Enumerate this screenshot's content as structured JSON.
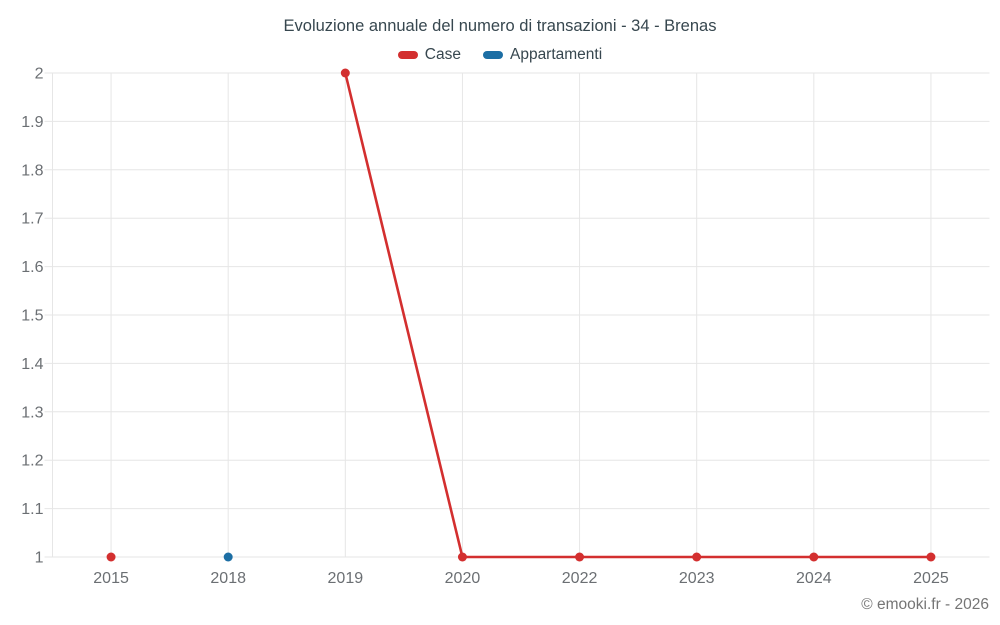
{
  "header": {
    "title": "Evoluzione annuale del numero di transazioni - 34 - Brenas"
  },
  "footer": {
    "copyright": "© emooki.fr - 2026"
  },
  "chart_data": {
    "type": "line",
    "title": "Evoluzione annuale del numero di transazioni - 34 - Brenas",
    "categories": [
      "2015",
      "2018",
      "2019",
      "2020",
      "2022",
      "2023",
      "2024",
      "2025"
    ],
    "series": [
      {
        "name": "Case",
        "color": "#d32f2f",
        "values": [
          1,
          null,
          2,
          1,
          1,
          1,
          1,
          1
        ]
      },
      {
        "name": "Appartamenti",
        "color": "#1c6ea4",
        "values": [
          null,
          1,
          null,
          null,
          null,
          null,
          null,
          null
        ]
      }
    ],
    "xlabel": "",
    "ylabel": "",
    "ylim": [
      1,
      2
    ],
    "ytick_step": 0.1,
    "grid": true,
    "legend_position": "top",
    "grid_color": "#e6e6e6",
    "axis_label_color": "#6b6f73",
    "marker_radius": 4.5,
    "line_width": 2.6,
    "copyright": "© emooki.fr - 2026"
  }
}
